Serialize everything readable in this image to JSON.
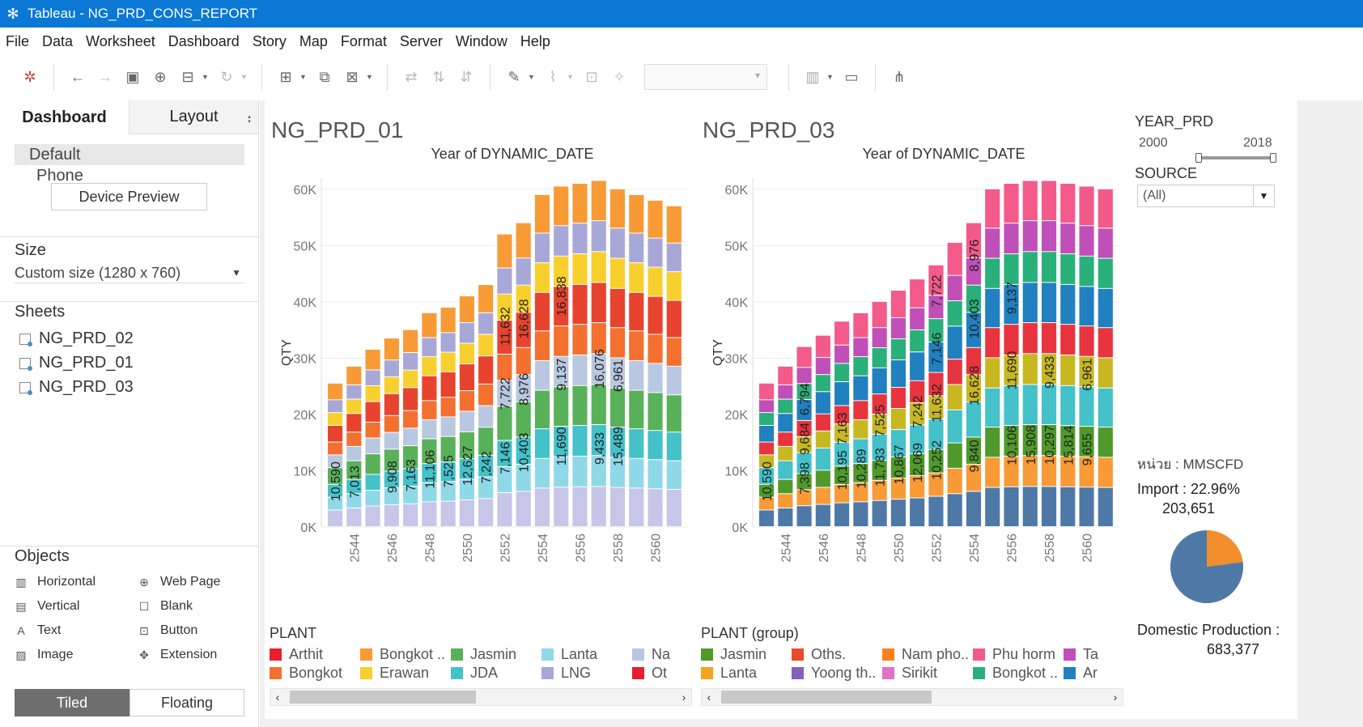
{
  "window": {
    "title": "Tableau - NG_PRD_CONS_REPORT"
  },
  "menu": [
    "File",
    "Data",
    "Worksheet",
    "Dashboard",
    "Story",
    "Map",
    "Format",
    "Server",
    "Window",
    "Help"
  ],
  "left_pane": {
    "tab_dashboard": "Dashboard",
    "tab_layout": "Layout",
    "device_default": "Default",
    "device_phone": "Phone",
    "device_preview_button": "Device Preview",
    "size_title": "Size",
    "size_value": "Custom size (1280 x 760)",
    "sheets_title": "Sheets",
    "sheets": [
      "NG_PRD_02",
      "NG_PRD_01",
      "NG_PRD_03"
    ],
    "objects_title": "Objects",
    "objects": [
      "Horizontal",
      "Web Page",
      "Vertical",
      "Blank",
      "Text",
      "Button",
      "Image",
      "Extension"
    ],
    "tiled_label": "Tiled",
    "floating_label": "Floating"
  },
  "filters": {
    "year_title": "YEAR_PRD",
    "year_min": "2000",
    "year_max": "2018",
    "year_range": [
      2000,
      2018
    ],
    "source_title": "SOURCE",
    "source_value": "(All)"
  },
  "summary": {
    "unit": "หน่วย : MMSCFD",
    "import_label": "Import : 22.96%",
    "import_value": "203,651",
    "domestic_label": "Domestic Production :",
    "domestic_value": "683,377",
    "pie_colors": {
      "import": "#f28e2b",
      "domestic": "#4e79a7"
    }
  },
  "legend1": {
    "title": "PLANT",
    "items": [
      {
        "label": "Arthit",
        "color": "#e8202e"
      },
      {
        "label": "Bongkot ..",
        "color": "#f89a36"
      },
      {
        "label": "Jasmin",
        "color": "#59b15a"
      },
      {
        "label": "Lanta",
        "color": "#8fd8e8"
      },
      {
        "label": "Na",
        "color": "#b9c8e0"
      },
      {
        "label": "Bongkot",
        "color": "#f4702f"
      },
      {
        "label": "Erawan",
        "color": "#f8d02e"
      },
      {
        "label": "JDA",
        "color": "#44c1c9"
      },
      {
        "label": "LNG",
        "color": "#a8a8d8"
      },
      {
        "label": "Ot",
        "color": "#e8202e"
      }
    ]
  },
  "legend2": {
    "title": "PLANT (group)",
    "items": [
      {
        "label": "Jasmin",
        "color": "#4f9a2a"
      },
      {
        "label": "Oths.",
        "color": "#e84a2e"
      },
      {
        "label": "Nam pho..",
        "color": "#f8821e"
      },
      {
        "label": "Phu horm",
        "color": "#f45a8a"
      },
      {
        "label": "Ta",
        "color": "#c050b8"
      },
      {
        "label": "Lanta",
        "color": "#f8a21e"
      },
      {
        "label": "Yoong th..",
        "color": "#8060c0"
      },
      {
        "label": "Sirikit",
        "color": "#e070c8"
      },
      {
        "label": "Bongkot ..",
        "color": "#2ab07a"
      },
      {
        "label": "Ar",
        "color": "#2080c0"
      }
    ]
  },
  "chart_data": [
    {
      "type": "bar",
      "title": "NG_PRD_01",
      "subtitle": "Year of DYNAMIC_DATE",
      "xlabel": "",
      "ylabel": "QTY",
      "ylim": [
        0,
        62000
      ],
      "yticks": [
        "0K",
        "10K",
        "20K",
        "30K",
        "40K",
        "50K",
        "60K"
      ],
      "x_tick_labels": [
        "2544",
        "2546",
        "2548",
        "2550",
        "2552",
        "2554",
        "2556",
        "2558",
        "2560"
      ],
      "categories": [
        "2543",
        "2544",
        "2545",
        "2546",
        "2547",
        "2548",
        "2549",
        "2550",
        "2551",
        "2552",
        "2553",
        "2554",
        "2555",
        "2556",
        "2557",
        "2558",
        "2559",
        "2560",
        "2561"
      ],
      "totals": [
        25500,
        28500,
        31500,
        33500,
        35000,
        38000,
        39000,
        41000,
        43000,
        52000,
        54000,
        59000,
        60500,
        61000,
        61500,
        60000,
        59000,
        58000,
        57000
      ],
      "segment_colors": [
        "#c6c6e8",
        "#8fd8e8",
        "#44c1c9",
        "#59b15a",
        "#b9c8e0",
        "#f4702f",
        "#e8432e",
        "#f8d02e",
        "#a8a8d8",
        "#f89a36",
        "#e8202e"
      ],
      "data_labels": [
        {
          "x": "2543",
          "value": "10,590"
        },
        {
          "x": "2544",
          "value": "7,013"
        },
        {
          "x": "2546",
          "value": "9,908"
        },
        {
          "x": "2547",
          "value": "7,163"
        },
        {
          "x": "2548",
          "value": "11,106"
        },
        {
          "x": "2549",
          "value": "7,525"
        },
        {
          "x": "2550",
          "value": "12,627"
        },
        {
          "x": "2551",
          "value": "7,242"
        },
        {
          "x": "2552",
          "value": "7,146"
        },
        {
          "x": "2552",
          "value": "7,722"
        },
        {
          "x": "2552",
          "value": "11,632"
        },
        {
          "x": "2553",
          "value": "10,403"
        },
        {
          "x": "2553",
          "value": "8,976"
        },
        {
          "x": "2553",
          "value": "16,628"
        },
        {
          "x": "2555",
          "value": "11,690"
        },
        {
          "x": "2555",
          "value": "9,137"
        },
        {
          "x": "2555",
          "value": "16,838"
        },
        {
          "x": "2557",
          "value": "9,433"
        },
        {
          "x": "2557",
          "value": "16,076"
        },
        {
          "x": "2558",
          "value": "15,489"
        },
        {
          "x": "2558",
          "value": "6,961"
        }
      ]
    },
    {
      "type": "bar",
      "title": "NG_PRD_03",
      "subtitle": "Year of DYNAMIC_DATE",
      "xlabel": "",
      "ylabel": "QTY",
      "ylim": [
        0,
        62000
      ],
      "yticks": [
        "0K",
        "10K",
        "20K",
        "30K",
        "40K",
        "50K",
        "60K"
      ],
      "x_tick_labels": [
        "2544",
        "2546",
        "2548",
        "2550",
        "2552",
        "2554",
        "2556",
        "2558",
        "2560"
      ],
      "categories": [
        "2543",
        "2544",
        "2545",
        "2546",
        "2547",
        "2548",
        "2549",
        "2550",
        "2551",
        "2552",
        "2553",
        "2554",
        "2555",
        "2556",
        "2557",
        "2558",
        "2559",
        "2560",
        "2561"
      ],
      "totals": [
        25500,
        28500,
        32000,
        34000,
        36500,
        38000,
        40000,
        42000,
        44000,
        46500,
        50500,
        54000,
        60000,
        61000,
        61500,
        61500,
        61000,
        60500,
        60000
      ],
      "segment_colors": [
        "#4e79a7",
        "#f89a36",
        "#4f9a2a",
        "#44c1c9",
        "#c7b821",
        "#e8343e",
        "#2080c0",
        "#2ab07a",
        "#c050b8",
        "#f45a8a",
        "#f8821e"
      ],
      "data_labels": [
        {
          "x": "2543",
          "value": "10,590"
        },
        {
          "x": "2545",
          "value": "7,398"
        },
        {
          "x": "2545",
          "value": "9,684"
        },
        {
          "x": "2545",
          "value": "6,794"
        },
        {
          "x": "2547",
          "value": "10,195"
        },
        {
          "x": "2547",
          "value": "7,163"
        },
        {
          "x": "2548",
          "value": "10,289"
        },
        {
          "x": "2549",
          "value": "11,783"
        },
        {
          "x": "2549",
          "value": "7,525"
        },
        {
          "x": "2550",
          "value": "10,867"
        },
        {
          "x": "2551",
          "value": "12,069"
        },
        {
          "x": "2551",
          "value": "7,242"
        },
        {
          "x": "2552",
          "value": "10,252"
        },
        {
          "x": "2552",
          "value": "11,632"
        },
        {
          "x": "2552",
          "value": "7,146"
        },
        {
          "x": "2552",
          "value": "7,722"
        },
        {
          "x": "2554",
          "value": "9,840"
        },
        {
          "x": "2554",
          "value": "16,628"
        },
        {
          "x": "2554",
          "value": "10,403"
        },
        {
          "x": "2554",
          "value": "8,976"
        },
        {
          "x": "2556",
          "value": "10,106"
        },
        {
          "x": "2556",
          "value": "11,690"
        },
        {
          "x": "2556",
          "value": "9,137"
        },
        {
          "x": "2557",
          "value": "15,908"
        },
        {
          "x": "2558",
          "value": "10,297"
        },
        {
          "x": "2558",
          "value": "9,433"
        },
        {
          "x": "2559",
          "value": "15,814"
        },
        {
          "x": "2560",
          "value": "9,655"
        },
        {
          "x": "2560",
          "value": "6,961"
        }
      ]
    },
    {
      "type": "pie",
      "title": "",
      "slices": [
        {
          "name": "Import",
          "value": 22.96,
          "color": "#f28e2b"
        },
        {
          "name": "Domestic Production",
          "value": 77.04,
          "color": "#4e79a7"
        }
      ]
    }
  ]
}
